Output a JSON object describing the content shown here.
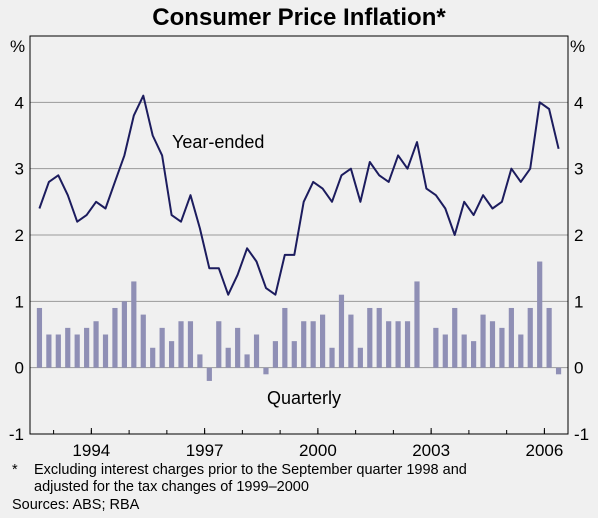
{
  "chart_data": {
    "type": "bar+line",
    "title": "Consumer Price Inflation*",
    "y_unit_left": "%",
    "y_unit_right": "%",
    "ylim": [
      -1,
      5
    ],
    "yticks": [
      -1,
      0,
      1,
      2,
      3,
      4
    ],
    "x_ticks": [
      "1994",
      "1997",
      "2000",
      "2003",
      "2006"
    ],
    "x_tick_values": [
      1994,
      1997,
      2000,
      2003,
      2006
    ],
    "x_range": [
      1992.5,
      2006.75
    ],
    "grid": true,
    "series": [
      {
        "name": "Year-ended",
        "kind": "line",
        "color": "#1c1c5e",
        "x": [
          1992.75,
          1993.0,
          1993.25,
          1993.5,
          1993.75,
          1994.0,
          1994.25,
          1994.5,
          1994.75,
          1995.0,
          1995.25,
          1995.5,
          1995.75,
          1996.0,
          1996.25,
          1996.5,
          1996.75,
          1997.0,
          1997.25,
          1997.5,
          1997.75,
          1998.0,
          1998.25,
          1998.5,
          1998.75,
          1999.0,
          1999.25,
          1999.5,
          1999.75,
          2000.0,
          2000.25,
          2000.5,
          2000.75,
          2001.0,
          2001.25,
          2001.5,
          2001.75,
          2002.0,
          2002.25,
          2002.5,
          2002.75,
          2003.0,
          2003.25,
          2003.5,
          2003.75,
          2004.0,
          2004.25,
          2004.5,
          2004.75,
          2005.0,
          2005.25,
          2005.5,
          2005.75,
          2006.0,
          2006.25,
          2006.5
        ],
        "values": [
          2.4,
          2.8,
          2.9,
          2.6,
          2.2,
          2.3,
          2.5,
          2.4,
          2.8,
          3.2,
          3.8,
          4.1,
          3.5,
          3.2,
          2.3,
          2.2,
          2.6,
          2.1,
          1.5,
          1.5,
          1.1,
          1.4,
          1.8,
          1.6,
          1.2,
          1.1,
          1.7,
          1.7,
          2.5,
          2.8,
          2.7,
          2.5,
          2.9,
          3.0,
          2.5,
          3.1,
          2.9,
          2.8,
          3.2,
          3.0,
          3.4,
          2.7,
          2.6,
          2.4,
          2.0,
          2.5,
          2.3,
          2.6,
          2.4,
          2.5,
          3.0,
          2.8,
          3.0,
          4.0,
          3.9,
          3.3
        ]
      },
      {
        "name": "Quarterly",
        "kind": "bar",
        "color": "#8f8fb5",
        "x": [
          1992.75,
          1993.0,
          1993.25,
          1993.5,
          1993.75,
          1994.0,
          1994.25,
          1994.5,
          1994.75,
          1995.0,
          1995.25,
          1995.5,
          1995.75,
          1996.0,
          1996.25,
          1996.5,
          1996.75,
          1997.0,
          1997.25,
          1997.5,
          1997.75,
          1998.0,
          1998.25,
          1998.5,
          1998.75,
          1999.0,
          1999.25,
          1999.5,
          1999.75,
          2000.0,
          2000.25,
          2000.5,
          2000.75,
          2001.0,
          2001.25,
          2001.5,
          2001.75,
          2002.0,
          2002.25,
          2002.5,
          2002.75,
          2003.0,
          2003.25,
          2003.5,
          2003.75,
          2004.0,
          2004.25,
          2004.5,
          2004.75,
          2005.0,
          2005.25,
          2005.5,
          2005.75,
          2006.0,
          2006.25,
          2006.5
        ],
        "values": [
          0.9,
          0.5,
          0.5,
          0.6,
          0.5,
          0.6,
          0.7,
          0.5,
          0.9,
          1.0,
          1.3,
          0.8,
          0.3,
          0.6,
          0.4,
          0.7,
          0.7,
          0.2,
          -0.2,
          0.7,
          0.3,
          0.6,
          0.2,
          0.5,
          -0.1,
          0.4,
          0.9,
          0.4,
          0.7,
          0.7,
          0.8,
          0.3,
          1.1,
          0.8,
          0.3,
          0.9,
          0.9,
          0.7,
          0.7,
          0.7,
          1.3,
          0.0,
          0.6,
          0.5,
          0.9,
          0.5,
          0.4,
          0.8,
          0.7,
          0.6,
          0.9,
          0.5,
          0.9,
          1.6,
          0.9,
          -0.1
        ]
      }
    ],
    "annotations": [
      "Year-ended",
      "Quarterly"
    ],
    "footnotes": [
      "Excluding interest charges prior to the September quarter 1998 and",
      "adjusted for the tax changes of 1999–2000",
      "Sources: ABS; RBA"
    ],
    "footnote_marker": "*"
  }
}
